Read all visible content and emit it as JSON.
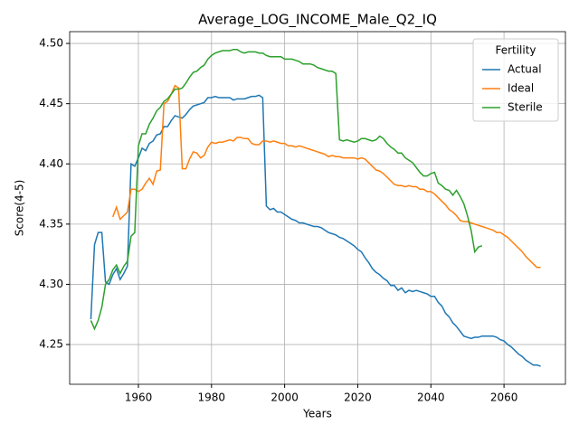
{
  "chart_data": {
    "type": "line",
    "title": "Average_LOG_INCOME_Male_Q2_IQ",
    "x_label": "Years",
    "y_label": "Score(4-5)",
    "legend_title": "Fertility",
    "legend": "upper right",
    "grid": true,
    "xlim": [
      1941.2,
      2076.8
    ],
    "ylim": [
      4.217,
      4.5098
    ],
    "xticks": [
      1960,
      1980,
      2000,
      2020,
      2040,
      2060
    ],
    "yticks": [
      4.25,
      {
        "value": 4.3,
        "label": "4.30"
      },
      {
        "value": 4.35,
        "label": "4.35"
      },
      {
        "value": 4.4,
        "label": "4.40"
      },
      4.45,
      {
        "value": 4.5,
        "label": "4.50"
      }
    ],
    "x": [
      1947,
      1948,
      1949,
      1950,
      1951,
      1952,
      1953,
      1954,
      1955,
      1956,
      1957,
      1958,
      1959,
      1960,
      1961,
      1962,
      1963,
      1964,
      1965,
      1966,
      1967,
      1968,
      1969,
      1970,
      1971,
      1972,
      1973,
      1974,
      1975,
      1976,
      1977,
      1978,
      1979,
      1980,
      1981,
      1982,
      1983,
      1984,
      1985,
      1986,
      1987,
      1988,
      1989,
      1990,
      1991,
      1992,
      1993,
      1994,
      1995,
      1996,
      1997,
      1998,
      1999,
      2000,
      2001,
      2002,
      2003,
      2004,
      2005,
      2006,
      2007,
      2008,
      2009,
      2010,
      2011,
      2012,
      2013,
      2014,
      2015,
      2016,
      2017,
      2018,
      2019,
      2020,
      2021,
      2022,
      2023,
      2024,
      2025,
      2026,
      2027,
      2028,
      2029,
      2030,
      2031,
      2032,
      2033,
      2034,
      2035,
      2036,
      2037,
      2038,
      2039,
      2040,
      2041,
      2042,
      2043,
      2044,
      2045,
      2046,
      2047,
      2048,
      2049,
      2050,
      2051,
      2052,
      2053,
      2054,
      2055,
      2056,
      2057,
      2058,
      2059,
      2060,
      2061,
      2062,
      2063,
      2064,
      2065,
      2066,
      2067,
      2068,
      2069,
      2070
    ],
    "series": [
      {
        "name": "Actual",
        "color": "#1f77b4",
        "values": [
          4.271,
          4.333,
          4.343,
          4.343,
          4.302,
          4.3,
          4.308,
          4.313,
          4.304,
          4.309,
          4.315,
          4.4,
          4.398,
          4.405,
          4.413,
          4.411,
          4.417,
          4.419,
          4.424,
          4.425,
          4.431,
          4.431,
          4.436,
          4.44,
          4.439,
          4.438,
          4.441,
          4.445,
          4.448,
          4.449,
          4.45,
          4.451,
          4.455,
          4.455,
          4.456,
          4.455,
          4.455,
          4.455,
          4.455,
          4.453,
          4.454,
          4.454,
          4.454,
          4.455,
          4.456,
          4.456,
          4.457,
          4.455,
          4.365,
          4.362,
          4.363,
          4.36,
          4.36,
          4.358,
          4.356,
          4.354,
          4.353,
          4.351,
          4.351,
          4.35,
          4.349,
          4.348,
          4.348,
          4.347,
          4.345,
          4.343,
          4.342,
          4.341,
          4.339,
          4.338,
          4.336,
          4.334,
          4.332,
          4.329,
          4.327,
          4.322,
          4.318,
          4.313,
          4.31,
          4.308,
          4.305,
          4.303,
          4.299,
          4.299,
          4.295,
          4.297,
          4.293,
          4.295,
          4.294,
          4.295,
          4.294,
          4.293,
          4.292,
          4.29,
          4.29,
          4.285,
          4.282,
          4.276,
          4.273,
          4.268,
          4.265,
          4.261,
          4.257,
          4.256,
          4.255,
          4.256,
          4.256,
          4.257,
          4.257,
          4.257,
          4.257,
          4.256,
          4.254,
          4.253,
          4.25,
          4.248,
          4.245,
          4.242,
          4.24,
          4.237,
          4.235,
          4.233,
          4.233,
          4.232
        ]
      },
      {
        "name": "Ideal",
        "color": "#ff7f0e",
        "values": [
          null,
          null,
          null,
          null,
          null,
          null,
          4.356,
          4.364,
          4.354,
          4.357,
          4.36,
          4.379,
          4.379,
          4.377,
          4.379,
          4.384,
          4.388,
          4.383,
          4.394,
          4.395,
          4.45,
          4.452,
          4.458,
          4.465,
          4.463,
          4.396,
          4.396,
          4.404,
          4.41,
          4.409,
          4.405,
          4.407,
          4.414,
          4.418,
          4.417,
          4.418,
          4.418,
          4.419,
          4.42,
          4.419,
          4.422,
          4.422,
          4.421,
          4.421,
          4.417,
          4.416,
          4.416,
          4.419,
          4.419,
          4.418,
          4.419,
          4.418,
          4.417,
          4.417,
          4.415,
          4.415,
          4.414,
          4.415,
          4.414,
          4.413,
          4.412,
          4.411,
          4.41,
          4.409,
          4.408,
          4.406,
          4.407,
          4.406,
          4.406,
          4.405,
          4.405,
          4.405,
          4.405,
          4.404,
          4.405,
          4.404,
          4.401,
          4.398,
          4.395,
          4.394,
          4.392,
          4.389,
          4.386,
          4.383,
          4.382,
          4.382,
          4.381,
          4.382,
          4.381,
          4.381,
          4.379,
          4.379,
          4.377,
          4.377,
          4.375,
          4.372,
          4.369,
          4.366,
          4.362,
          4.36,
          4.357,
          4.353,
          4.352,
          4.352,
          4.351,
          4.35,
          4.349,
          4.348,
          4.347,
          4.346,
          4.345,
          4.343,
          4.343,
          4.341,
          4.339,
          4.336,
          4.333,
          4.33,
          4.327,
          4.323,
          4.32,
          4.317,
          4.314,
          4.314
        ]
      },
      {
        "name": "Sterile",
        "color": "#2ca02c",
        "values": [
          4.27,
          4.263,
          4.27,
          4.281,
          4.3,
          4.304,
          4.312,
          4.316,
          4.309,
          4.315,
          4.319,
          4.34,
          4.343,
          4.415,
          4.425,
          4.425,
          4.433,
          4.438,
          4.444,
          4.447,
          4.452,
          4.454,
          4.458,
          4.462,
          4.462,
          4.463,
          4.467,
          4.472,
          4.476,
          4.477,
          4.48,
          4.482,
          4.487,
          4.49,
          4.492,
          4.493,
          4.494,
          4.494,
          4.494,
          4.495,
          4.495,
          4.493,
          4.492,
          4.493,
          4.493,
          4.493,
          4.492,
          4.492,
          4.49,
          4.489,
          4.489,
          4.489,
          4.489,
          4.487,
          4.487,
          4.487,
          4.486,
          4.485,
          4.483,
          4.483,
          4.483,
          4.482,
          4.48,
          4.479,
          4.478,
          4.477,
          4.477,
          4.475,
          4.42,
          4.419,
          4.42,
          4.419,
          4.418,
          4.419,
          4.421,
          4.421,
          4.42,
          4.419,
          4.42,
          4.423,
          4.421,
          4.417,
          4.414,
          4.412,
          4.409,
          4.409,
          4.405,
          4.403,
          4.401,
          4.397,
          4.393,
          4.39,
          4.39,
          4.392,
          4.393,
          4.384,
          4.382,
          4.379,
          4.378,
          4.374,
          4.378,
          4.373,
          4.367,
          4.357,
          4.345,
          4.327,
          4.331,
          4.332,
          null,
          null,
          null,
          null,
          null,
          null,
          null,
          null,
          null,
          null,
          null,
          null,
          null,
          null,
          null,
          null
        ]
      }
    ]
  }
}
